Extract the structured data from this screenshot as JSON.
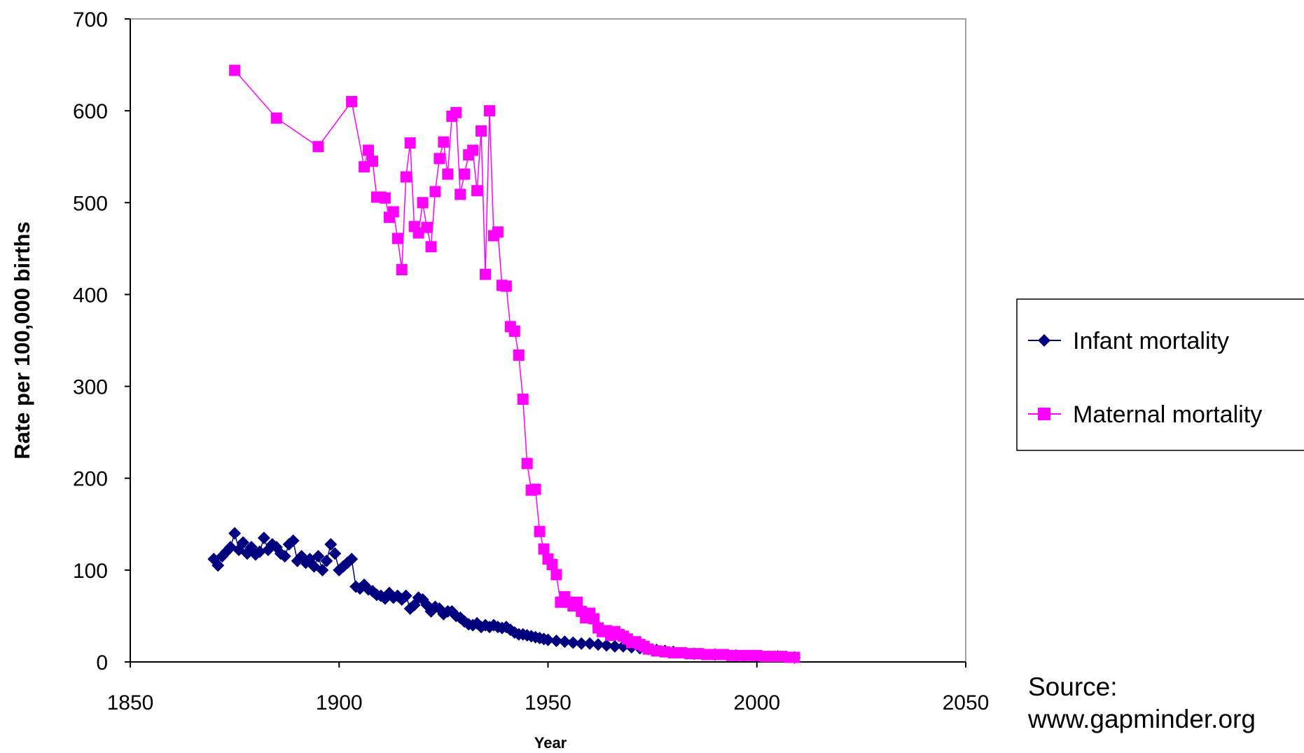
{
  "chart_data": {
    "type": "scatter",
    "xlabel": "Year",
    "ylabel": "Rate per 100,000 births",
    "xlim": [
      1850,
      2050
    ],
    "ylim": [
      0,
      700
    ],
    "x_ticks": [
      "1850",
      "1900",
      "1950",
      "2000",
      "2050"
    ],
    "y_ticks": [
      "0",
      "100",
      "200",
      "300",
      "400",
      "500",
      "600",
      "700"
    ],
    "grid": false,
    "legend_position": "right",
    "series": [
      {
        "name": "Infant mortality",
        "color": "#00007F",
        "marker": "diamond",
        "x": [
          1870,
          1871,
          1872,
          1873,
          1874,
          1875,
          1876,
          1877,
          1878,
          1879,
          1880,
          1881,
          1882,
          1883,
          1884,
          1885,
          1886,
          1887,
          1888,
          1889,
          1890,
          1891,
          1892,
          1893,
          1894,
          1895,
          1896,
          1897,
          1898,
          1899,
          1900,
          1901,
          1902,
          1903,
          1904,
          1905,
          1906,
          1907,
          1908,
          1909,
          1910,
          1911,
          1912,
          1913,
          1914,
          1915,
          1916,
          1917,
          1918,
          1919,
          1920,
          1921,
          1922,
          1923,
          1924,
          1925,
          1926,
          1927,
          1928,
          1929,
          1930,
          1931,
          1932,
          1933,
          1934,
          1935,
          1936,
          1937,
          1938,
          1939,
          1940,
          1941,
          1942,
          1943,
          1944,
          1945,
          1946,
          1947,
          1948,
          1949,
          1950,
          1952,
          1954,
          1956,
          1958,
          1960,
          1962,
          1964,
          1966,
          1968,
          1970,
          1972,
          1974,
          1976,
          1978,
          1980,
          1985,
          1990,
          1995,
          2000,
          2005,
          2009
        ],
        "y": [
          112,
          105,
          115,
          120,
          125,
          140,
          122,
          130,
          118,
          125,
          117,
          120,
          135,
          122,
          128,
          125,
          118,
          115,
          128,
          132,
          110,
          115,
          108,
          112,
          104,
          115,
          100,
          110,
          128,
          118,
          100,
          104,
          108,
          112,
          82,
          80,
          84,
          79,
          77,
          73,
          72,
          69,
          75,
          70,
          72,
          68,
          72,
          58,
          62,
          70,
          68,
          62,
          55,
          60,
          58,
          52,
          55,
          55,
          50,
          48,
          44,
          41,
          40,
          42,
          38,
          40,
          38,
          40,
          38,
          37,
          38,
          35,
          32,
          30,
          30,
          29,
          28,
          27,
          26,
          25,
          24,
          23,
          22,
          21,
          20,
          20,
          19,
          18,
          17,
          17,
          16,
          15,
          14,
          13,
          12,
          11,
          9,
          8,
          7,
          6,
          6,
          5
        ]
      },
      {
        "name": "Maternal mortality",
        "color": "#FF00FF",
        "marker": "square",
        "x": [
          1875,
          1885,
          1895,
          1903,
          1906,
          1907,
          1908,
          1909,
          1910,
          1911,
          1912,
          1913,
          1914,
          1915,
          1916,
          1917,
          1918,
          1919,
          1920,
          1921,
          1922,
          1923,
          1924,
          1925,
          1926,
          1927,
          1928,
          1929,
          1930,
          1931,
          1932,
          1933,
          1934,
          1935,
          1936,
          1937,
          1938,
          1939,
          1940,
          1941,
          1942,
          1943,
          1944,
          1945,
          1946,
          1947,
          1948,
          1949,
          1950,
          1951,
          1952,
          1953,
          1954,
          1955,
          1956,
          1957,
          1958,
          1959,
          1960,
          1961,
          1962,
          1963,
          1964,
          1965,
          1966,
          1967,
          1968,
          1969,
          1970,
          1971,
          1972,
          1973,
          1974,
          1976,
          1978,
          1980,
          1982,
          1984,
          1986,
          1988,
          1990,
          1992,
          1994,
          1996,
          1998,
          2000,
          2002,
          2004,
          2006,
          2008,
          2009
        ],
        "y": [
          644,
          592,
          561,
          610,
          539,
          557,
          545,
          506,
          506,
          505,
          484,
          490,
          461,
          427,
          528,
          565,
          474,
          467,
          500,
          473,
          452,
          512,
          548,
          566,
          531,
          594,
          598,
          509,
          531,
          552,
          557,
          513,
          578,
          422,
          600,
          464,
          468,
          410,
          409,
          365,
          360,
          334,
          286,
          216,
          187,
          188,
          142,
          123,
          112,
          106,
          95,
          65,
          71,
          65,
          61,
          65,
          55,
          48,
          53,
          47,
          37,
          33,
          34,
          29,
          33,
          30,
          28,
          25,
          21,
          22,
          19,
          17,
          14,
          12,
          11,
          10,
          10,
          9,
          9,
          8,
          8,
          8,
          7,
          7,
          7,
          7,
          6,
          6,
          6,
          5,
          5
        ]
      }
    ],
    "legend": [
      "Infant mortality",
      "Maternal mortality"
    ]
  },
  "source": {
    "line1": "Source:",
    "line2": "www.gapminder.org"
  }
}
